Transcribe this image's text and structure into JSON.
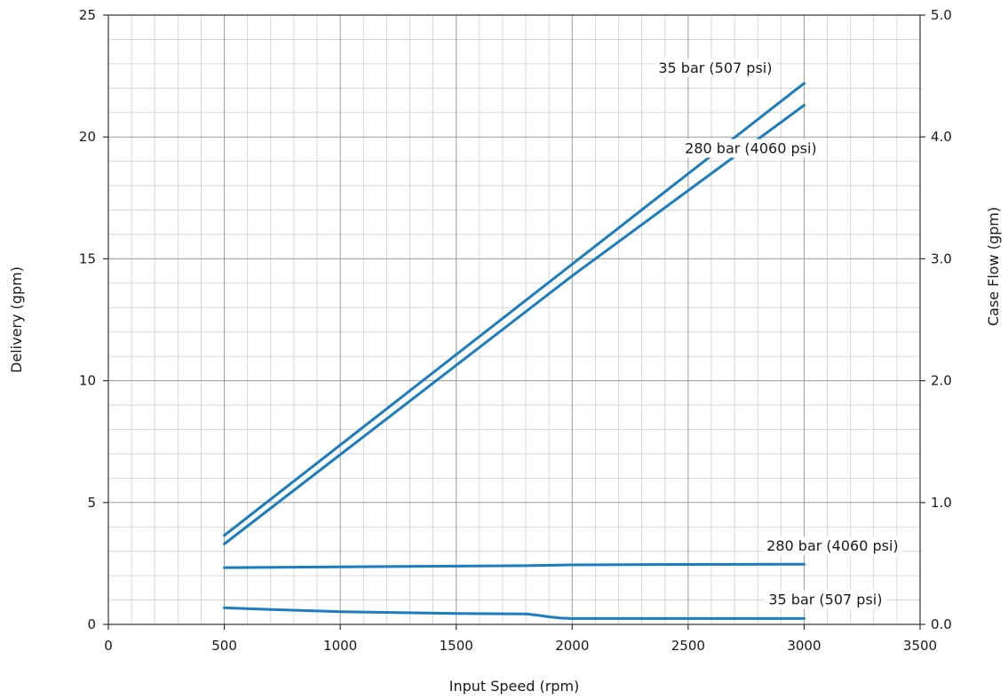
{
  "chart_data": {
    "type": "line",
    "xlabel": "Input Speed  (rpm)",
    "ylabel": "Delivery (gpm)",
    "y2label": "Case Flow (gpm)",
    "xlim": [
      0,
      3500
    ],
    "ylim": [
      0,
      25
    ],
    "y2lim": [
      0,
      5.0
    ],
    "xticks": [
      "0",
      "500",
      "1000",
      "1500",
      "2000",
      "2500",
      "3000",
      "3500"
    ],
    "yticks": [
      "0",
      "5",
      "10",
      "15",
      "20",
      "25"
    ],
    "y2ticks": [
      "0.0",
      "1.0",
      "2.0",
      "3.0",
      "4.0",
      "5.0"
    ],
    "grid": true,
    "series_color": "#1a7dbf",
    "series": [
      {
        "name": "35 bar  (507 psi)",
        "axis": "left",
        "x": [
          500,
          3000
        ],
        "y": [
          3.65,
          22.2
        ]
      },
      {
        "name": "280 bar (4060 psi)",
        "axis": "left",
        "x": [
          500,
          2000,
          3000
        ],
        "y": [
          3.3,
          14.3,
          21.3
        ]
      },
      {
        "name": "280 bar (4060 psi)",
        "axis": "right",
        "x": [
          500,
          1000,
          1500,
          1800,
          2000,
          2500,
          3000
        ],
        "y": [
          0.466,
          0.472,
          0.478,
          0.482,
          0.488,
          0.492,
          0.494
        ]
      },
      {
        "name": "35 bar  (507 psi)",
        "axis": "right",
        "x": [
          500,
          700,
          1000,
          1500,
          1800,
          1850,
          1900,
          1950,
          2000,
          2500,
          3000
        ],
        "y": [
          0.136,
          0.122,
          0.104,
          0.09,
          0.086,
          0.076,
          0.062,
          0.052,
          0.048,
          0.048,
          0.048
        ]
      }
    ]
  }
}
